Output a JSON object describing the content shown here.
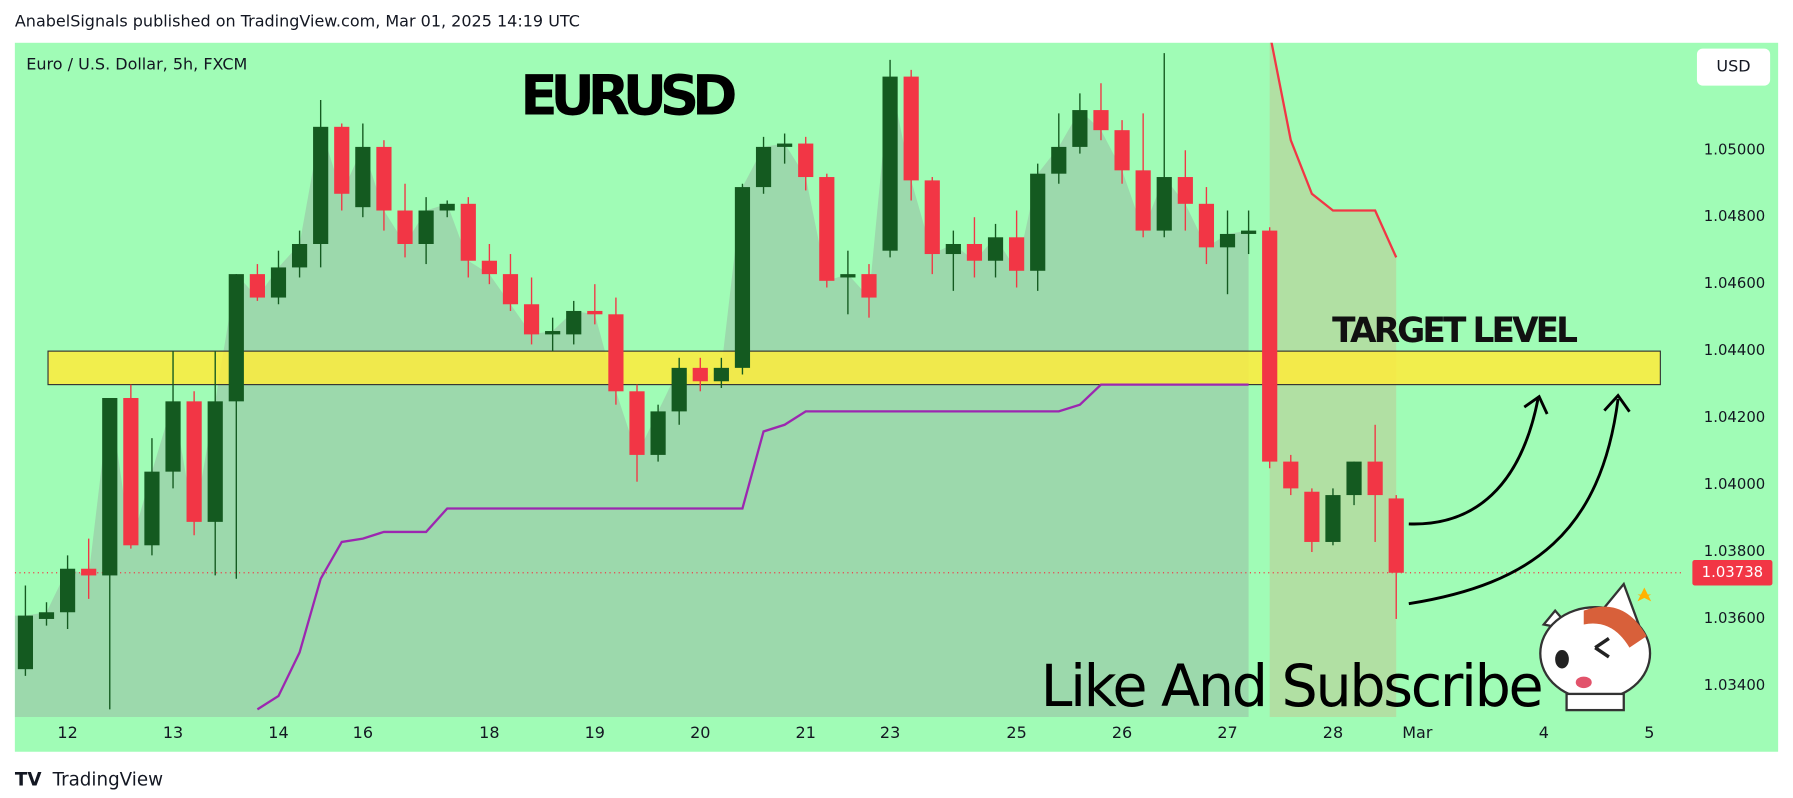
{
  "chart_data": {
    "type": "candlestick",
    "header": "AnabelSignals published on TradingView.com, Mar 01, 2025 14:19 UTC",
    "symbol": "Euro / U.S. Dollar, 5h, FXCM",
    "title": "EURUSD",
    "annotation": "Like And Subscribe",
    "currency": "USD",
    "brand": "TradingView",
    "up_color": "#145a20",
    "down_color": "#f23645",
    "categories": [
      null,
      null,
      "12",
      null,
      null,
      null,
      null,
      "13",
      null,
      null,
      null,
      null,
      "14",
      null,
      null,
      null,
      "16",
      null,
      null,
      null,
      null,
      null,
      "18",
      null,
      null,
      null,
      null,
      "19",
      null,
      null,
      null,
      null,
      "20",
      null,
      null,
      null,
      null,
      "21",
      null,
      null,
      null,
      "23",
      null,
      null,
      null,
      null,
      null,
      "25",
      null,
      null,
      null,
      null,
      "26",
      null,
      null,
      null,
      null,
      "27",
      null,
      null,
      null,
      null,
      "28",
      null,
      null,
      null,
      "Mar",
      null,
      null,
      null,
      null,
      null,
      "4",
      null,
      null,
      null,
      null,
      "5",
      null
    ],
    "open": [
      1.0345,
      1.036,
      1.0362,
      1.0375,
      1.0373,
      1.0426,
      1.0382,
      1.0404,
      1.0425,
      1.0389,
      1.0425,
      1.0463,
      1.0456,
      1.0465,
      1.0472,
      1.0507,
      1.0483,
      1.0501,
      1.0482,
      1.0472,
      1.0482,
      1.0484,
      1.0467,
      1.0463,
      1.0454,
      1.0445,
      1.0445,
      1.0452,
      1.0451,
      1.0428,
      1.0409,
      1.0422,
      1.0435,
      1.0431,
      1.0435,
      1.0489,
      1.0501,
      1.0502,
      1.0492,
      1.0462,
      1.0463,
      1.047,
      1.0522,
      1.0491,
      1.0469,
      1.0472,
      1.0467,
      1.0474,
      1.0464,
      1.0493,
      1.0501,
      1.0512,
      1.0506,
      1.0494,
      1.0476,
      1.0492,
      1.0484,
      1.0471,
      1.0475,
      1.0476,
      1.0407,
      1.0398,
      1.0383,
      1.0397,
      1.0407,
      1.0396,
      null,
      null,
      null,
      null,
      null,
      null,
      null,
      null,
      null,
      null,
      null,
      null,
      null
    ],
    "high": [
      1.037,
      1.0365,
      1.0379,
      1.0384,
      1.0426,
      1.043,
      1.0414,
      1.044,
      1.0428,
      1.044,
      1.0463,
      1.0466,
      1.047,
      1.0476,
      1.0515,
      1.0508,
      1.0508,
      1.0503,
      1.049,
      1.0486,
      1.0485,
      1.0486,
      1.0472,
      1.0469,
      1.0462,
      1.045,
      1.0455,
      1.046,
      1.0456,
      1.043,
      1.0424,
      1.0438,
      1.0438,
      1.0438,
      1.049,
      1.0504,
      1.0505,
      1.0504,
      1.0493,
      1.047,
      1.0466,
      1.0527,
      1.0524,
      1.0492,
      1.0476,
      1.048,
      1.0478,
      1.0482,
      1.0496,
      1.0511,
      1.0517,
      1.052,
      1.0509,
      1.0511,
      1.0529,
      1.05,
      1.0489,
      1.0482,
      1.0482,
      1.0477,
      1.0409,
      1.0399,
      1.0399,
      1.0407,
      1.0418,
      1.0397,
      null,
      null,
      null,
      null,
      null,
      null,
      null,
      null,
      null,
      null,
      null,
      null,
      null
    ],
    "low": [
      1.0343,
      1.0358,
      1.0357,
      1.0366,
      1.0333,
      1.0381,
      1.0379,
      1.0399,
      1.0385,
      1.0373,
      1.0372,
      1.0455,
      1.0454,
      1.0462,
      1.0465,
      1.0482,
      1.048,
      1.0476,
      1.0468,
      1.0466,
      1.048,
      1.0462,
      1.046,
      1.0452,
      1.0442,
      1.044,
      1.0442,
      1.0448,
      1.0424,
      1.0401,
      1.0407,
      1.0418,
      1.0428,
      1.0429,
      1.0433,
      1.0487,
      1.0496,
      1.0488,
      1.0459,
      1.0451,
      1.045,
      1.0468,
      1.0485,
      1.0463,
      1.0458,
      1.0462,
      1.0462,
      1.0459,
      1.0458,
      1.049,
      1.0499,
      1.0503,
      1.049,
      1.0474,
      1.0474,
      1.0476,
      1.0466,
      1.0457,
      1.0469,
      1.0405,
      1.0397,
      1.038,
      1.0382,
      1.0394,
      1.0383,
      1.036,
      null,
      null,
      null,
      null,
      null,
      null,
      null,
      null,
      null,
      null,
      null,
      null,
      null
    ],
    "close": [
      1.0361,
      1.0362,
      1.0375,
      1.0373,
      1.0426,
      1.0382,
      1.0404,
      1.0425,
      1.0389,
      1.0425,
      1.0463,
      1.0456,
      1.0465,
      1.0472,
      1.0507,
      1.0487,
      1.0501,
      1.0482,
      1.0472,
      1.0482,
      1.0484,
      1.0467,
      1.0463,
      1.0454,
      1.0445,
      1.0446,
      1.0452,
      1.0451,
      1.0428,
      1.0409,
      1.0422,
      1.0435,
      1.0431,
      1.0435,
      1.0489,
      1.0501,
      1.0502,
      1.0492,
      1.0461,
      1.0463,
      1.0456,
      1.0522,
      1.0491,
      1.0469,
      1.0472,
      1.0467,
      1.0474,
      1.0464,
      1.0493,
      1.0501,
      1.0512,
      1.0506,
      1.0494,
      1.0476,
      1.0492,
      1.0484,
      1.0471,
      1.0475,
      1.0476,
      1.0407,
      1.0399,
      1.0383,
      1.0397,
      1.0407,
      1.0397,
      1.03738,
      null,
      null,
      null,
      null,
      null,
      null,
      null,
      null,
      null,
      null,
      null,
      null,
      null
    ],
    "indicators": [
      {
        "color": "#9c27b0",
        "values": [
          null,
          null,
          null,
          null,
          null,
          null,
          null,
          null,
          null,
          null,
          null,
          1.0333,
          1.0337,
          1.035,
          1.0372,
          1.0383,
          1.0384,
          1.0386,
          1.0386,
          1.0386,
          1.0393,
          1.0393,
          1.0393,
          1.0393,
          1.0393,
          1.0393,
          1.0393,
          1.0393,
          1.0393,
          1.0393,
          1.0393,
          1.0393,
          1.0393,
          1.0393,
          1.0393,
          1.0416,
          1.0418,
          1.0422,
          1.0422,
          1.0422,
          1.0422,
          1.0422,
          1.0422,
          1.0422,
          1.0422,
          1.0422,
          1.0422,
          1.0422,
          1.0422,
          1.0422,
          1.0424,
          1.043,
          1.043,
          1.043,
          1.043,
          1.043,
          1.043,
          1.043,
          1.043,
          null,
          null,
          null,
          null,
          null,
          null,
          null,
          null,
          null,
          null,
          null,
          null,
          null,
          null,
          null,
          null,
          null,
          null,
          null,
          null
        ]
      },
      {
        "color": "#f23645",
        "values": [
          null,
          null,
          null,
          null,
          null,
          null,
          null,
          null,
          null,
          null,
          null,
          null,
          null,
          null,
          null,
          null,
          null,
          null,
          null,
          null,
          null,
          null,
          null,
          null,
          null,
          null,
          null,
          null,
          null,
          null,
          null,
          null,
          null,
          null,
          null,
          null,
          null,
          null,
          null,
          null,
          null,
          null,
          null,
          null,
          null,
          null,
          null,
          null,
          null,
          null,
          null,
          null,
          null,
          null,
          null,
          null,
          null,
          null,
          null,
          1.0535,
          1.0503,
          1.0487,
          1.0482,
          1.0482,
          1.0482,
          1.0468,
          null,
          null,
          null,
          null,
          null,
          null,
          null,
          null,
          null,
          null,
          null,
          null,
          null
        ]
      }
    ],
    "zone": {
      "label": "TARGET LEVEL",
      "low": 1.043,
      "high": 1.044,
      "color": "#ffeb3b"
    },
    "last_price": 1.03738,
    "ylim": [
      1.03307,
      1.05321
    ],
    "yticks": [
      {
        "value": 1.034,
        "label": "1.03400"
      },
      {
        "value": 1.036,
        "label": "1.03600"
      },
      {
        "value": 1.038,
        "label": "1.03800"
      },
      {
        "value": 1.04,
        "label": "1.04000"
      },
      {
        "value": 1.042,
        "label": "1.04200"
      },
      {
        "value": 1.044,
        "label": "1.04400"
      },
      {
        "value": 1.046,
        "label": "1.04600"
      },
      {
        "value": 1.048,
        "label": "1.04800"
      },
      {
        "value": 1.05,
        "label": "1.05000"
      }
    ]
  }
}
